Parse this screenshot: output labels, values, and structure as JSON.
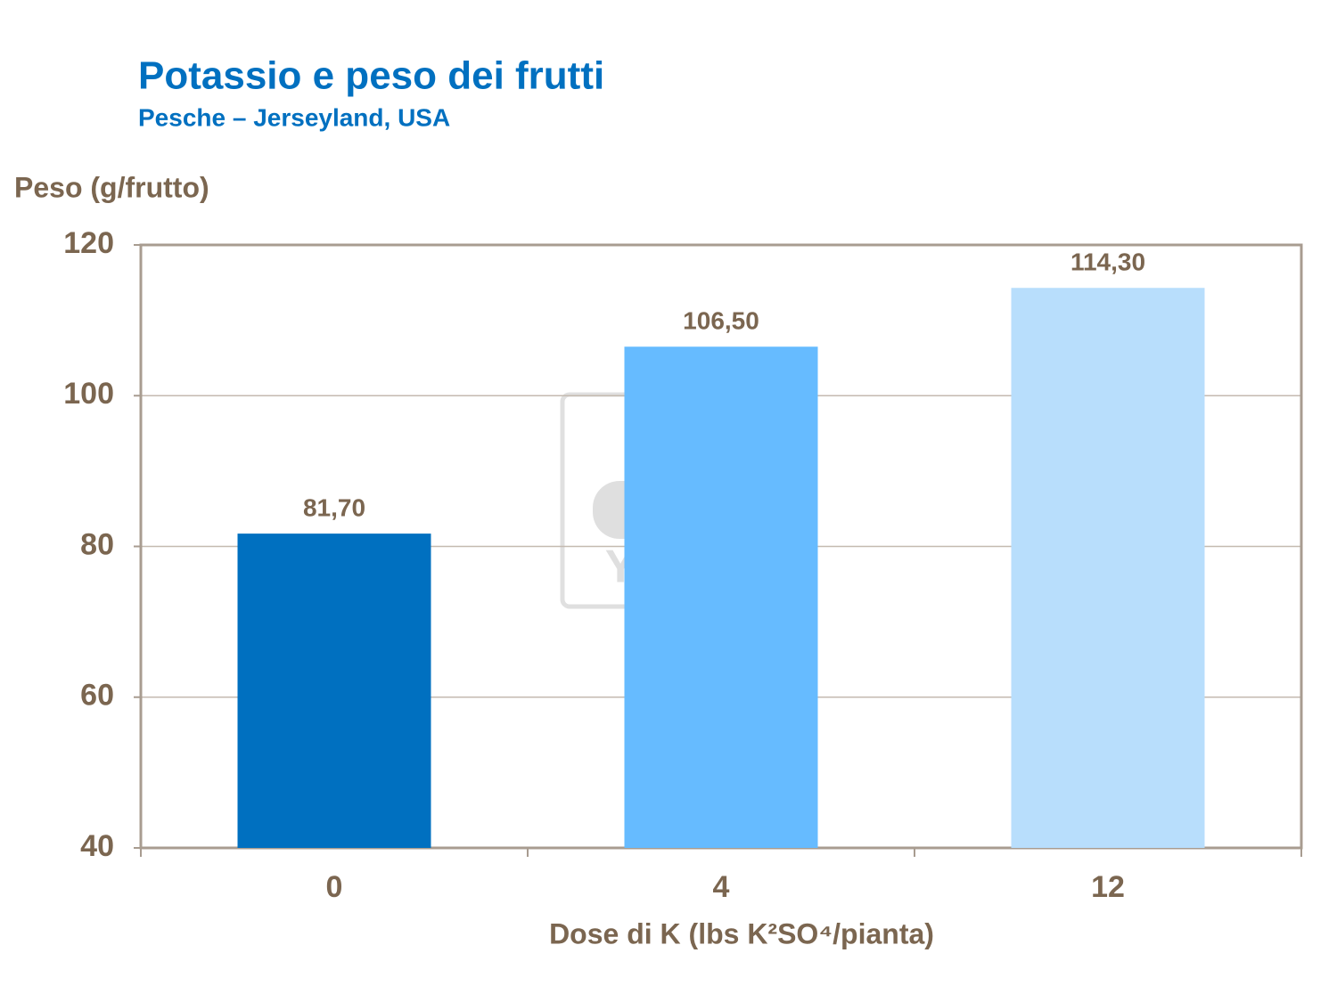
{
  "chart_data": {
    "type": "bar",
    "title": "Potassio e peso dei frutti",
    "subtitle": "Pesche – Jerseyland, USA",
    "y_label": "Peso (g/frutto)",
    "x_label": "Dose di K (lbs K²SO⁴/pianta)",
    "watermark": "YARA",
    "categories": [
      "0",
      "4",
      "12"
    ],
    "values": [
      81.7,
      106.5,
      114.3
    ],
    "value_labels": [
      "81,70",
      "106,50",
      "114,30"
    ],
    "colors": [
      "#0070c0",
      "#66bbff",
      "#b8defc"
    ],
    "ylim": [
      40,
      120
    ],
    "yticks": [
      40,
      60,
      80,
      100,
      120
    ],
    "grid": true
  }
}
